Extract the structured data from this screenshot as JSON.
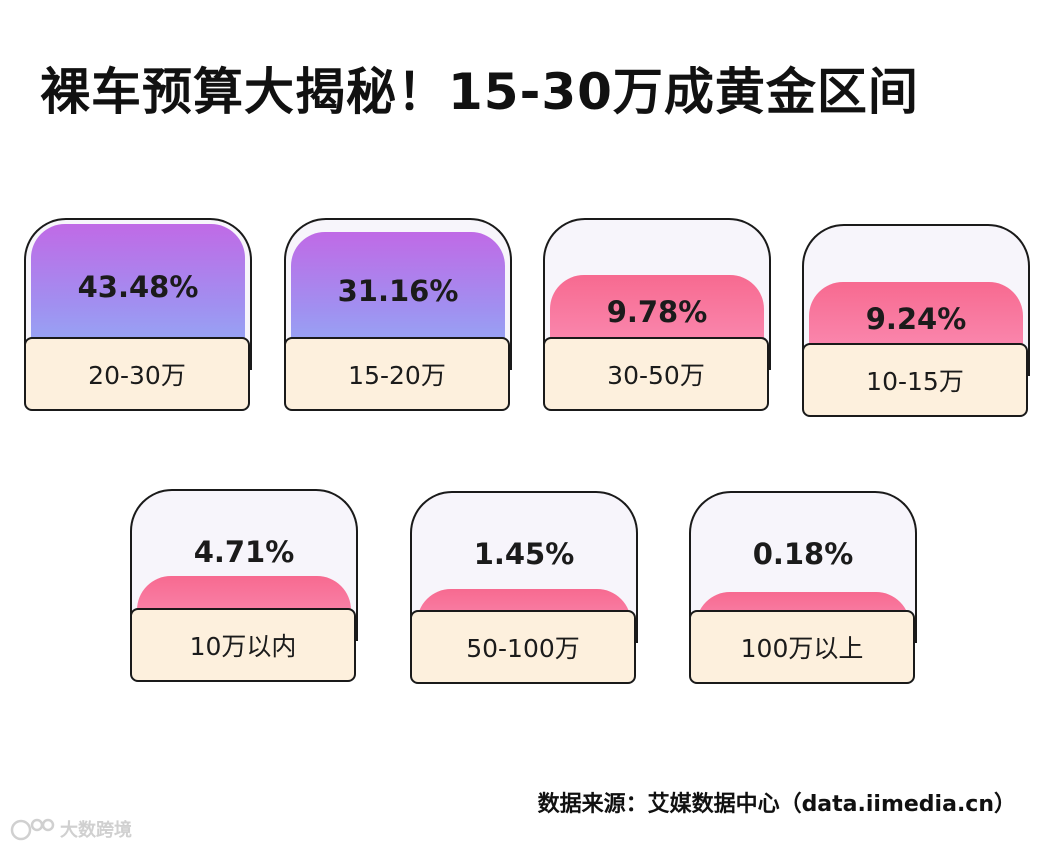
{
  "title": "裸车预算大揭秘！15-30万成黄金区间",
  "chart_data": {
    "type": "bar",
    "categories": [
      "20-30万",
      "15-20万",
      "30-50万",
      "10-15万",
      "10万以内",
      "50-100万",
      "100万以上"
    ],
    "values": [
      43.48,
      31.16,
      9.78,
      9.24,
      4.71,
      1.45,
      0.18
    ],
    "value_labels": [
      "43.48%",
      "31.16%",
      "9.78%",
      "9.24%",
      "4.71%",
      "1.45%",
      "0.18%"
    ],
    "unit": "%",
    "title": "裸车预算大揭秘！15-30万成黄金区间"
  },
  "source": "数据来源：艾媒数据中心（data.iimedia.cn）",
  "watermark": "大数跨境",
  "colors": {
    "purple_top": "#c06ae6",
    "purple_bottom": "#8fb3f8",
    "pink_top": "#f76a90",
    "pink_bottom": "#fb93ba",
    "label_bg": "#fdf0dd",
    "tube_bg": "#f7f5fb"
  }
}
